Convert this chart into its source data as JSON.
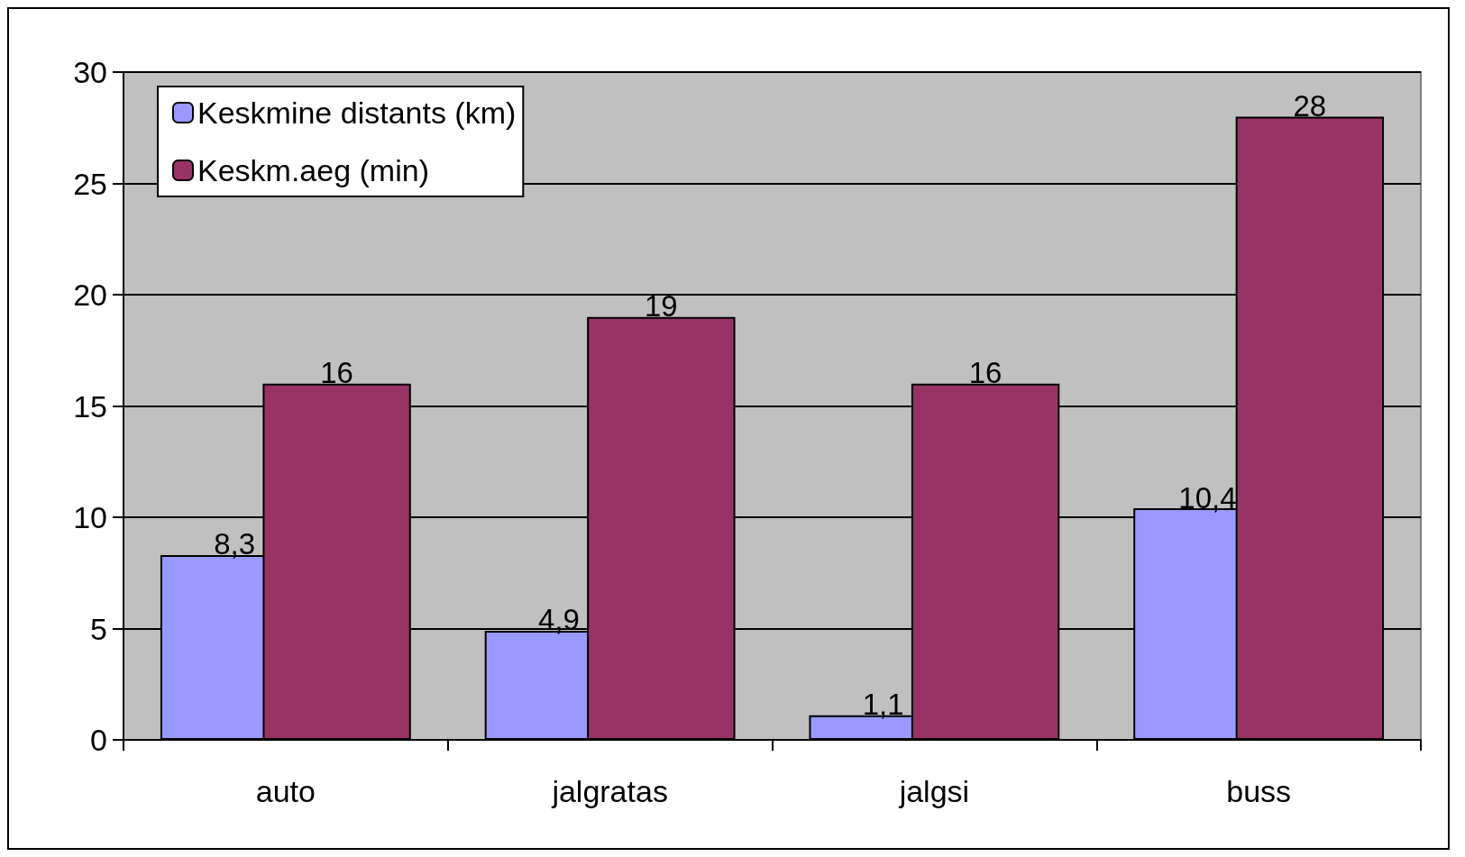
{
  "chart_data": {
    "type": "bar",
    "categories": [
      "auto",
      "jalgratas",
      "jalgsi",
      "buss"
    ],
    "series": [
      {
        "name": "Keskmine distants (km)",
        "color": "#9999ff",
        "values": [
          8.3,
          4.9,
          1.1,
          10.4
        ],
        "value_labels": [
          "8,3",
          "4,9",
          "1,1",
          "10,4"
        ]
      },
      {
        "name": "Keskm.aeg (min)",
        "color": "#993366",
        "values": [
          16,
          19,
          16,
          28
        ],
        "value_labels": [
          "16",
          "19",
          "16",
          "28"
        ]
      }
    ],
    "ylim": [
      0,
      30
    ],
    "yticks": [
      0,
      5,
      10,
      15,
      20,
      25,
      30
    ],
    "grid": "y",
    "legend": "top left"
  }
}
